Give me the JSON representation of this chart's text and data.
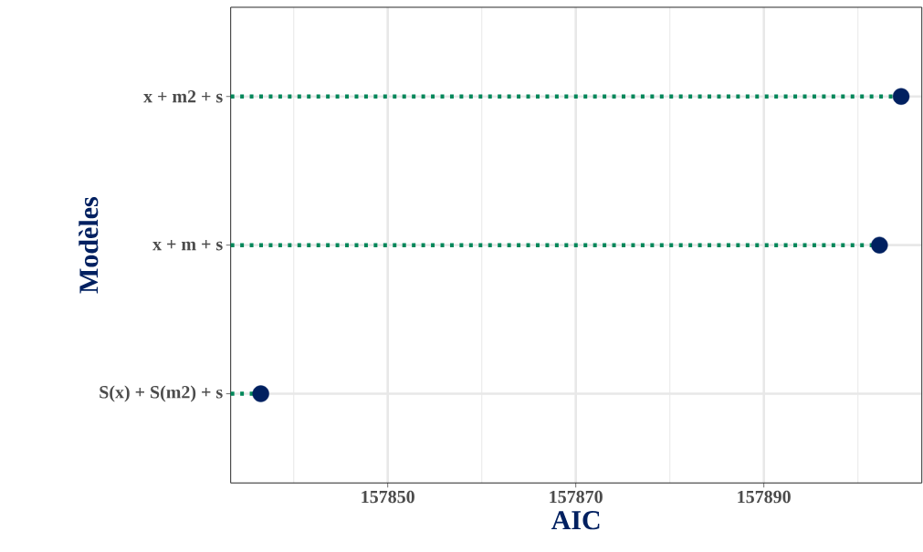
{
  "chart_data": {
    "type": "lollipop",
    "orientation": "horizontal",
    "xlabel": "AIC",
    "ylabel": "Modèles",
    "categories": [
      "x + m2 + s",
      "x + m + s",
      "S(x) + S(m2) + s"
    ],
    "values": [
      157904.6,
      157902.3,
      157836.5
    ],
    "color": "#002060",
    "marker": "circle",
    "line_style": "dotted",
    "xlim": [
      157833.3,
      157906.8
    ],
    "xticks": [
      {
        "value": 157840,
        "label": null
      },
      157850,
      {
        "value": 157860,
        "label": null
      },
      157870,
      {
        "value": 157880,
        "label": null
      },
      157890,
      {
        "value": 157900,
        "label": null
      }
    ],
    "grid": true
  }
}
